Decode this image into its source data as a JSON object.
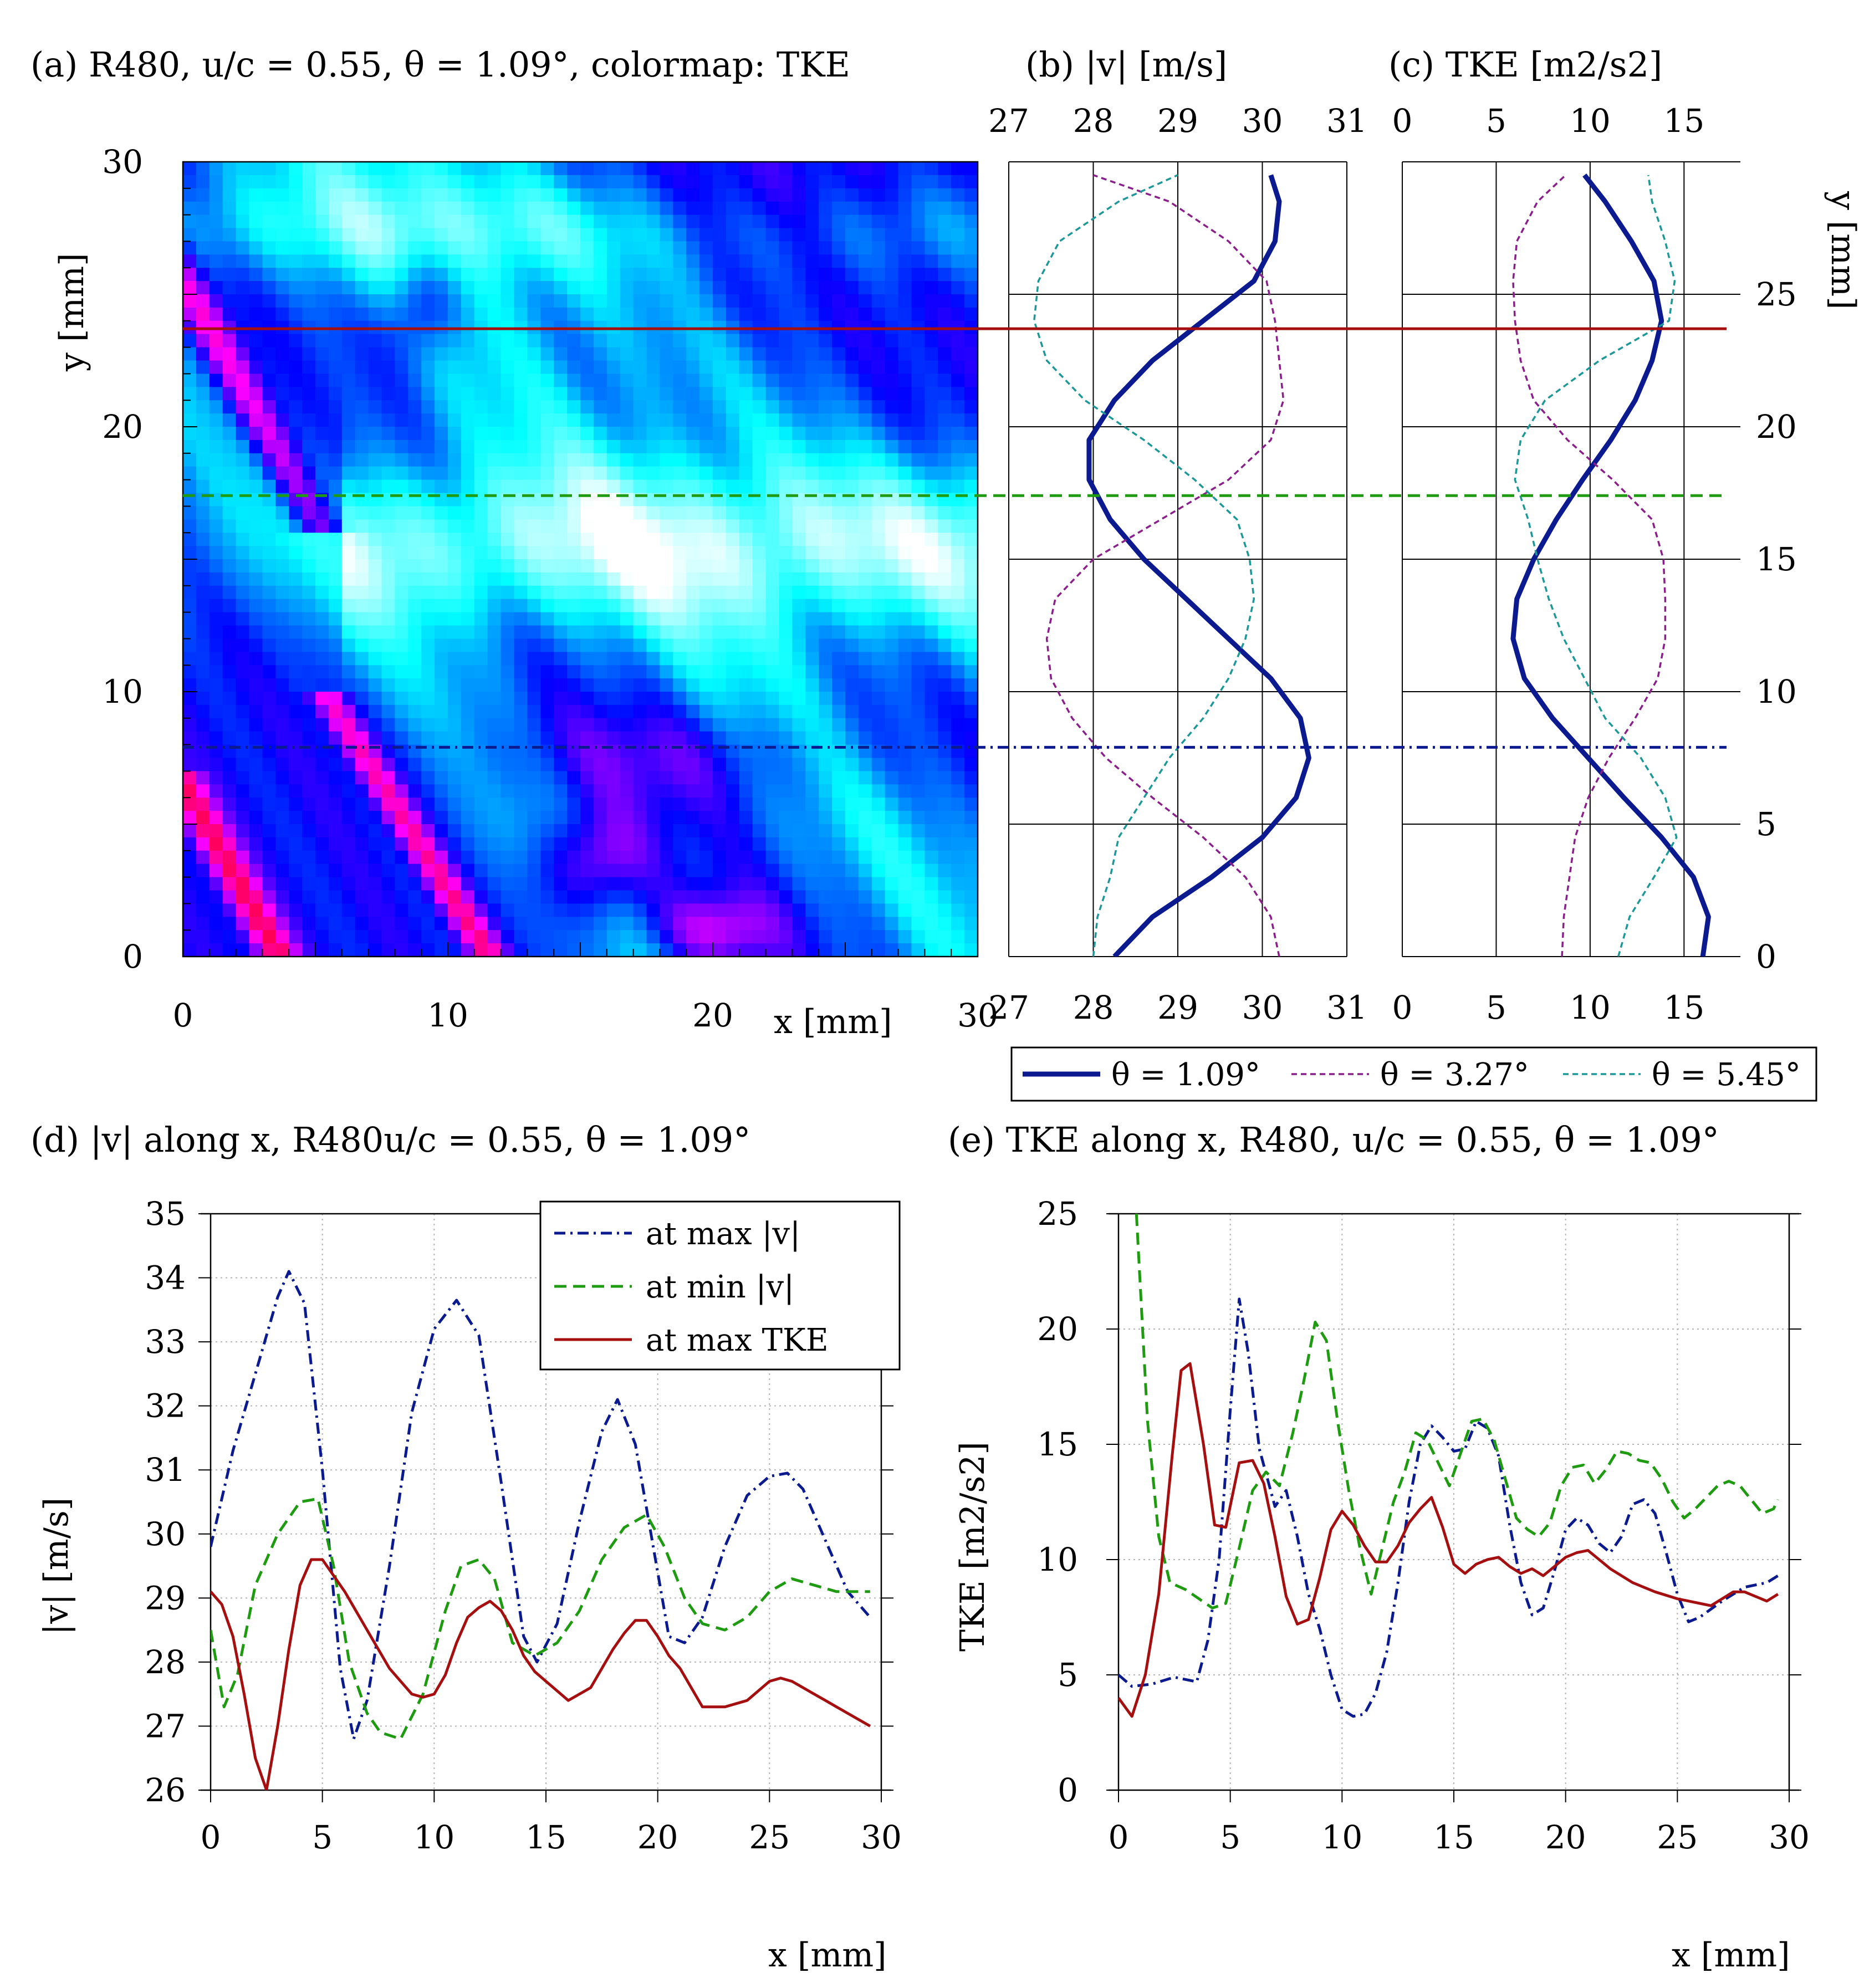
{
  "colors": {
    "red": "#a50f0f",
    "green": "#1f9b12",
    "navy": "#0b1a8f",
    "purple": "#8a1e8a",
    "teal": "#1c9898",
    "grid": "#b4b4b4"
  },
  "chart_data": [
    {
      "panel": "a",
      "type": "heatmap",
      "title": "(a) R480, u/c = 0.55, θ = 1.09°, colormap: TKE",
      "xlabel": "x [mm]",
      "ylabel": "y [mm]",
      "xlim": [
        0,
        30
      ],
      "ylim": [
        0,
        30
      ],
      "xticks": [
        "0",
        "10",
        "20",
        "30"
      ],
      "yticks": [
        "0",
        "10",
        "20",
        "30"
      ],
      "colormap": [
        "#ffffff",
        "#00ffff",
        "#0000ff",
        "#ff00ff",
        "#ff0000"
      ],
      "lines": [
        {
          "name": "at max TKE",
          "y": 23.7,
          "color": "#a50f0f",
          "style": "solid"
        },
        {
          "name": "at min |v|",
          "y": 17.4,
          "color": "#1f9b12",
          "style": "dashed"
        },
        {
          "name": "at max |v|",
          "y": 7.9,
          "color": "#0b1a8f",
          "style": "dashdot"
        }
      ]
    },
    {
      "panel": "b",
      "type": "line",
      "title": "(b) |v| [m/s]",
      "xlim": [
        27,
        31
      ],
      "ylim": [
        0,
        30
      ],
      "xticks": [
        "27",
        "28",
        "29",
        "30",
        "31"
      ],
      "y": [
        0,
        1.5,
        3,
        4.5,
        6,
        7.5,
        9,
        10.5,
        12,
        13.5,
        15,
        16.5,
        18,
        19.5,
        21,
        22.5,
        24,
        25.5,
        27,
        28.5,
        29.5
      ],
      "series": [
        {
          "name": "θ = 1.09°",
          "color": "#0b1a8f",
          "style": "solid",
          "values": [
            28.25,
            28.7,
            29.4,
            30.0,
            30.4,
            30.55,
            30.45,
            30.1,
            29.6,
            29.1,
            28.6,
            28.2,
            27.95,
            27.95,
            28.25,
            28.7,
            29.3,
            29.9,
            30.15,
            30.2,
            30.1
          ]
        },
        {
          "name": "θ = 3.27°",
          "color": "#8a1e8a",
          "style": "dashed",
          "values": [
            30.2,
            30.1,
            29.8,
            29.3,
            28.7,
            28.15,
            27.75,
            27.5,
            27.45,
            27.55,
            28.0,
            28.8,
            29.6,
            30.1,
            30.25,
            30.2,
            30.15,
            30.05,
            29.6,
            28.9,
            28.0
          ]
        },
        {
          "name": "θ = 5.45°",
          "color": "#1c9898",
          "style": "dashed",
          "values": [
            28.0,
            28.05,
            28.2,
            28.3,
            28.6,
            28.9,
            29.3,
            29.6,
            29.8,
            29.9,
            29.85,
            29.7,
            29.2,
            28.6,
            27.9,
            27.45,
            27.3,
            27.35,
            27.6,
            28.3,
            29.0
          ]
        }
      ]
    },
    {
      "panel": "c",
      "type": "line",
      "title": "(c) TKE [m2/s2]",
      "ylabel": "y [mm]",
      "xlim": [
        0,
        18
      ],
      "ylim": [
        0,
        30
      ],
      "xticks": [
        "0",
        "5",
        "10",
        "15"
      ],
      "yticks": [
        "0",
        "5",
        "10",
        "15",
        "20",
        "25"
      ],
      "y": [
        0,
        1.5,
        3,
        4.5,
        6,
        7.5,
        9,
        10.5,
        12,
        13.5,
        15,
        16.5,
        18,
        19.5,
        21,
        22.5,
        24,
        25.5,
        27,
        28.5,
        29.5
      ],
      "series": [
        {
          "name": "θ = 1.09°",
          "color": "#0b1a8f",
          "style": "solid",
          "values": [
            16.0,
            16.3,
            15.5,
            13.8,
            11.8,
            9.9,
            8.0,
            6.5,
            5.9,
            6.1,
            7.0,
            8.2,
            9.6,
            11.1,
            12.4,
            13.3,
            13.8,
            13.4,
            12.2,
            10.8,
            9.7
          ]
        },
        {
          "name": "θ = 3.27°",
          "color": "#8a1e8a",
          "style": "dashed",
          "values": [
            8.5,
            8.6,
            8.9,
            9.2,
            9.9,
            11.0,
            12.4,
            13.6,
            14.0,
            14.0,
            13.9,
            13.3,
            11.2,
            8.8,
            7.0,
            6.3,
            6.0,
            5.9,
            6.1,
            7.2,
            8.7
          ]
        },
        {
          "name": "θ = 5.45°",
          "color": "#1c9898",
          "style": "dashed",
          "values": [
            11.5,
            12.1,
            13.4,
            14.6,
            14.0,
            12.7,
            10.8,
            9.7,
            8.6,
            7.8,
            7.2,
            6.7,
            6.0,
            6.3,
            7.6,
            10.5,
            14.2,
            14.5,
            14.0,
            13.3,
            13.1
          ]
        }
      ],
      "legend": {
        "placement": "below",
        "entries": [
          "θ = 1.09°",
          "θ = 3.27°",
          "θ = 5.45°"
        ]
      }
    },
    {
      "panel": "d",
      "type": "line",
      "title": "(d) |v| along x, R480u/c = 0.55, θ = 1.09°",
      "xlabel": "x [mm]",
      "ylabel": "|v| [m/s]",
      "xlim": [
        0,
        30
      ],
      "ylim": [
        26,
        35
      ],
      "xticks": [
        "0",
        "5",
        "10",
        "15",
        "20",
        "25",
        "30"
      ],
      "yticks": [
        "26",
        "27",
        "28",
        "29",
        "30",
        "31",
        "32",
        "33",
        "34",
        "35"
      ],
      "legend": {
        "placement": "top-right"
      },
      "series": [
        {
          "name": "at max |v|",
          "color": "#0b1a8f",
          "style": "dashdot",
          "x": [
            0,
            1,
            2,
            3,
            3.5,
            4.2,
            5,
            5.8,
            6.4,
            7,
            8,
            9,
            10,
            11,
            12,
            13,
            14,
            14.6,
            15.5,
            16.5,
            17.5,
            18.2,
            19,
            19.8,
            20.5,
            21.2,
            22,
            23,
            24,
            25,
            25.8,
            26.5,
            27.5,
            28.5,
            29.5
          ],
          "values": [
            29.8,
            31.3,
            32.5,
            33.7,
            34.1,
            33.6,
            31.0,
            27.9,
            26.8,
            27.4,
            29.5,
            31.9,
            33.2,
            33.65,
            33.1,
            30.8,
            28.4,
            28.0,
            28.6,
            30.2,
            31.6,
            32.1,
            31.4,
            29.8,
            28.4,
            28.3,
            28.7,
            29.8,
            30.6,
            30.9,
            30.95,
            30.7,
            29.9,
            29.1,
            28.7
          ]
        },
        {
          "name": "at min |v|",
          "color": "#1f9b12",
          "style": "dashed",
          "x": [
            0,
            0.6,
            1.2,
            2,
            3,
            4,
            4.8,
            5.5,
            6.2,
            7,
            7.6,
            8.5,
            9.5,
            10.5,
            11.2,
            12,
            12.7,
            13.5,
            14.5,
            15.5,
            16.5,
            17.5,
            18.5,
            19.5,
            20.3,
            21.2,
            22,
            23,
            24,
            25,
            26,
            27,
            28,
            29.5
          ],
          "values": [
            28.5,
            27.3,
            27.8,
            29.2,
            30.0,
            30.5,
            30.55,
            29.5,
            28.0,
            27.2,
            26.9,
            26.8,
            27.5,
            28.8,
            29.5,
            29.6,
            29.3,
            28.3,
            28.1,
            28.3,
            28.8,
            29.6,
            30.1,
            30.3,
            29.8,
            29.0,
            28.6,
            28.5,
            28.7,
            29.1,
            29.3,
            29.2,
            29.1,
            29.1
          ]
        },
        {
          "name": "at max TKE",
          "color": "#a50f0f",
          "style": "solid",
          "x": [
            0,
            0.5,
            1,
            1.5,
            2,
            2.5,
            3,
            3.5,
            4,
            4.5,
            5,
            6,
            7,
            8,
            9,
            9.5,
            10,
            10.5,
            11,
            11.5,
            12,
            12.5,
            13,
            13.5,
            14,
            14.5,
            15,
            15.5,
            16,
            17,
            18,
            18.5,
            19,
            19.5,
            20,
            20.5,
            21,
            22,
            23,
            24,
            25,
            25.5,
            26,
            26.5,
            27,
            27.5,
            28,
            29,
            29.5
          ],
          "values": [
            29.1,
            28.9,
            28.4,
            27.5,
            26.5,
            26.0,
            27.0,
            28.2,
            29.2,
            29.6,
            29.6,
            29.1,
            28.5,
            27.9,
            27.5,
            27.45,
            27.5,
            27.8,
            28.3,
            28.7,
            28.85,
            28.95,
            28.8,
            28.5,
            28.1,
            27.85,
            27.7,
            27.55,
            27.4,
            27.6,
            28.2,
            28.45,
            28.65,
            28.65,
            28.4,
            28.1,
            27.9,
            27.3,
            27.3,
            27.4,
            27.7,
            27.75,
            27.7,
            27.6,
            27.5,
            27.4,
            27.3,
            27.1,
            27.0
          ]
        }
      ]
    },
    {
      "panel": "e",
      "type": "line",
      "title": "(e) TKE along x, R480, u/c = 0.55, θ = 1.09°",
      "xlabel": "x [mm]",
      "ylabel": "TKE [m2/s2]",
      "xlim": [
        0,
        30
      ],
      "ylim": [
        0,
        25
      ],
      "xticks": [
        "0",
        "5",
        "10",
        "15",
        "20",
        "25",
        "30"
      ],
      "yticks": [
        "0",
        "5",
        "10",
        "15",
        "20",
        "25"
      ],
      "series": [
        {
          "name": "at max |v|",
          "color": "#0b1a8f",
          "style": "dashdot",
          "x": [
            0,
            0.6,
            1.5,
            2.5,
            3.5,
            4,
            4.5,
            5,
            5.4,
            5.8,
            6.3,
            7,
            7.5,
            8,
            8.5,
            9,
            9.5,
            10,
            10.5,
            11,
            11.5,
            12,
            12.5,
            13,
            13.5,
            14,
            14.5,
            15,
            15.5,
            16,
            16.5,
            17,
            17.5,
            18,
            18.5,
            19,
            19.5,
            20,
            20.5,
            21,
            21.5,
            22,
            22.5,
            23,
            23.5,
            24,
            24.5,
            25,
            25.5,
            26,
            27,
            28,
            29,
            29.5
          ],
          "values": [
            5.0,
            4.5,
            4.6,
            4.9,
            4.7,
            6.5,
            10.0,
            16.5,
            21.3,
            19.0,
            14.8,
            12.3,
            13.0,
            11.0,
            8.5,
            7.0,
            5.0,
            3.5,
            3.2,
            3.3,
            4.2,
            6.0,
            9.0,
            12.5,
            15.0,
            15.8,
            15.3,
            14.7,
            14.8,
            16.0,
            15.7,
            14.5,
            11.5,
            9.0,
            7.6,
            7.9,
            9.5,
            11.3,
            11.8,
            11.5,
            10.7,
            10.3,
            11.0,
            12.4,
            12.6,
            12.0,
            10.3,
            8.5,
            7.3,
            7.5,
            8.2,
            8.8,
            9.0,
            9.3
          ]
        },
        {
          "name": "at min |v|",
          "color": "#1f9b12",
          "style": "dashed",
          "x": [
            0.8,
            1.3,
            1.8,
            2.3,
            3,
            3.6,
            4.2,
            4.8,
            5.4,
            6,
            6.6,
            7.2,
            7.8,
            8.3,
            8.8,
            9.3,
            9.8,
            10.3,
            10.8,
            11.3,
            11.8,
            12.3,
            12.8,
            13.3,
            13.8,
            14.3,
            14.8,
            15.3,
            15.8,
            16.3,
            16.8,
            17.3,
            17.8,
            18.3,
            18.8,
            19.3,
            19.8,
            20.3,
            20.8,
            21.3,
            21.8,
            22.3,
            22.8,
            23.3,
            23.8,
            24.3,
            24.8,
            25.3,
            25.8,
            26.3,
            26.8,
            27.3,
            27.8,
            28.3,
            28.8,
            29.3,
            29.5
          ],
          "values": [
            25.0,
            16.0,
            11.0,
            9.0,
            8.7,
            8.3,
            7.9,
            8.1,
            10.5,
            13.0,
            13.8,
            13.2,
            15.5,
            17.8,
            20.3,
            19.5,
            16.0,
            13.0,
            10.5,
            8.5,
            10.5,
            12.5,
            13.8,
            15.5,
            15.2,
            14.2,
            13.2,
            14.6,
            16.0,
            16.1,
            15.2,
            13.5,
            11.8,
            11.3,
            11.0,
            11.6,
            13.2,
            14.0,
            14.1,
            13.3,
            13.9,
            14.7,
            14.6,
            14.3,
            14.2,
            13.5,
            12.5,
            11.8,
            12.2,
            12.7,
            13.2,
            13.4,
            13.2,
            12.6,
            12.0,
            12.2,
            12.6
          ]
        },
        {
          "name": "at max TKE",
          "color": "#a50f0f",
          "style": "solid",
          "x": [
            0,
            0.6,
            1.2,
            1.8,
            2.4,
            2.8,
            3.2,
            3.8,
            4.3,
            4.8,
            5.4,
            6,
            6.5,
            7,
            7.5,
            8,
            8.5,
            9,
            9.5,
            10,
            10.5,
            11,
            11.5,
            12,
            12.5,
            13,
            13.5,
            14,
            14.5,
            15,
            15.5,
            16,
            16.5,
            17,
            17.5,
            18,
            18.5,
            19,
            19.5,
            20,
            20.5,
            21,
            21.5,
            22,
            22.5,
            23,
            23.5,
            24,
            25,
            26,
            26.5,
            27,
            27.5,
            28,
            28.5,
            29,
            29.5
          ],
          "values": [
            4.0,
            3.2,
            5.0,
            8.5,
            14.5,
            18.2,
            18.5,
            15.0,
            11.5,
            11.4,
            14.2,
            14.3,
            13.3,
            11.0,
            8.4,
            7.2,
            7.4,
            9.2,
            11.3,
            12.1,
            11.5,
            10.6,
            9.9,
            9.9,
            10.6,
            11.6,
            12.2,
            12.7,
            11.4,
            9.8,
            9.4,
            9.8,
            10.0,
            10.1,
            9.7,
            9.4,
            9.6,
            9.3,
            9.7,
            10.1,
            10.3,
            10.4,
            10.0,
            9.6,
            9.3,
            9.0,
            8.8,
            8.6,
            8.3,
            8.1,
            8.0,
            8.3,
            8.6,
            8.6,
            8.4,
            8.2,
            8.5
          ]
        }
      ],
      "legend": {
        "placement": "none"
      }
    }
  ]
}
